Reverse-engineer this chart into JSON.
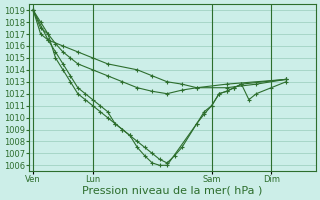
{
  "bg_color": "#cceee8",
  "grid_color": "#99ccbb",
  "line_color": "#2d6e2d",
  "xlabel": "Pression niveau de la mer( hPa )",
  "xlabel_fontsize": 8,
  "ylim": [
    1005.5,
    1019.5
  ],
  "yticks": [
    1006,
    1007,
    1008,
    1009,
    1010,
    1011,
    1012,
    1013,
    1014,
    1015,
    1016,
    1017,
    1018,
    1019
  ],
  "tick_fontsize": 6,
  "xtick_labels": [
    "Ven",
    "Lun",
    "Sam",
    "Dim"
  ],
  "xtick_positions": [
    0,
    8,
    24,
    32
  ],
  "vline_positions": [
    0,
    8,
    24,
    32
  ],
  "xlim": [
    -0.5,
    38
  ],
  "series": [
    [
      1019,
      1016.5,
      1016,
      1015.5,
      1015,
      1014.5,
      1014,
      1013.5,
      1013,
      1012.8,
      1012.5,
      1012.5,
      1012.8,
      1013.2
    ],
    [
      1019,
      1018,
      1017,
      1016.2,
      1015.5,
      1015,
      1014.5,
      1014,
      1013.5,
      1013,
      1012.5,
      1012.2,
      1012,
      1012.3,
      1012.5,
      1012.8,
      1013.2
    ],
    [
      1019,
      1017.5,
      1017,
      1015,
      1014,
      1013,
      1012,
      1011.5,
      1011,
      1010.5,
      1010,
      1009.5,
      1009,
      1008.5,
      1008,
      1007.5,
      1007,
      1006.5,
      1006.2,
      1006.8,
      1007.5,
      1009.5,
      1010.3,
      1011,
      1012,
      1012.2,
      1012.5,
      1012.8,
      1013.2
    ],
    [
      1019,
      1017,
      1016.5,
      1015.5,
      1014.5,
      1013.5,
      1012.5,
      1012,
      1011.5,
      1011,
      1010.5,
      1009.5,
      1009,
      1008.5,
      1007.5,
      1006.8,
      1006.2,
      1006.0,
      1006.0,
      1009.5,
      1010.5,
      1011,
      1012,
      1012.2,
      1012.5,
      1012.8,
      1011.5,
      1012.0,
      1012.5,
      1013.0
    ]
  ],
  "series_x": [
    [
      0,
      2,
      4,
      6,
      8,
      10,
      14,
      16,
      18,
      20,
      22,
      26,
      30,
      34
    ],
    [
      0,
      1,
      2,
      3,
      4,
      5,
      6,
      8,
      10,
      12,
      14,
      16,
      18,
      20,
      22,
      26,
      34
    ],
    [
      0,
      1,
      2,
      3,
      4,
      5,
      6,
      7,
      8,
      9,
      10,
      11,
      12,
      13,
      14,
      15,
      16,
      17,
      18,
      19,
      20,
      22,
      23,
      24,
      25,
      26,
      27,
      28,
      34
    ],
    [
      0,
      1,
      2,
      3,
      4,
      5,
      6,
      7,
      8,
      9,
      10,
      11,
      12,
      13,
      14,
      15,
      16,
      17,
      18,
      22,
      23,
      24,
      25,
      26,
      27,
      28,
      29,
      30,
      32,
      34
    ]
  ]
}
